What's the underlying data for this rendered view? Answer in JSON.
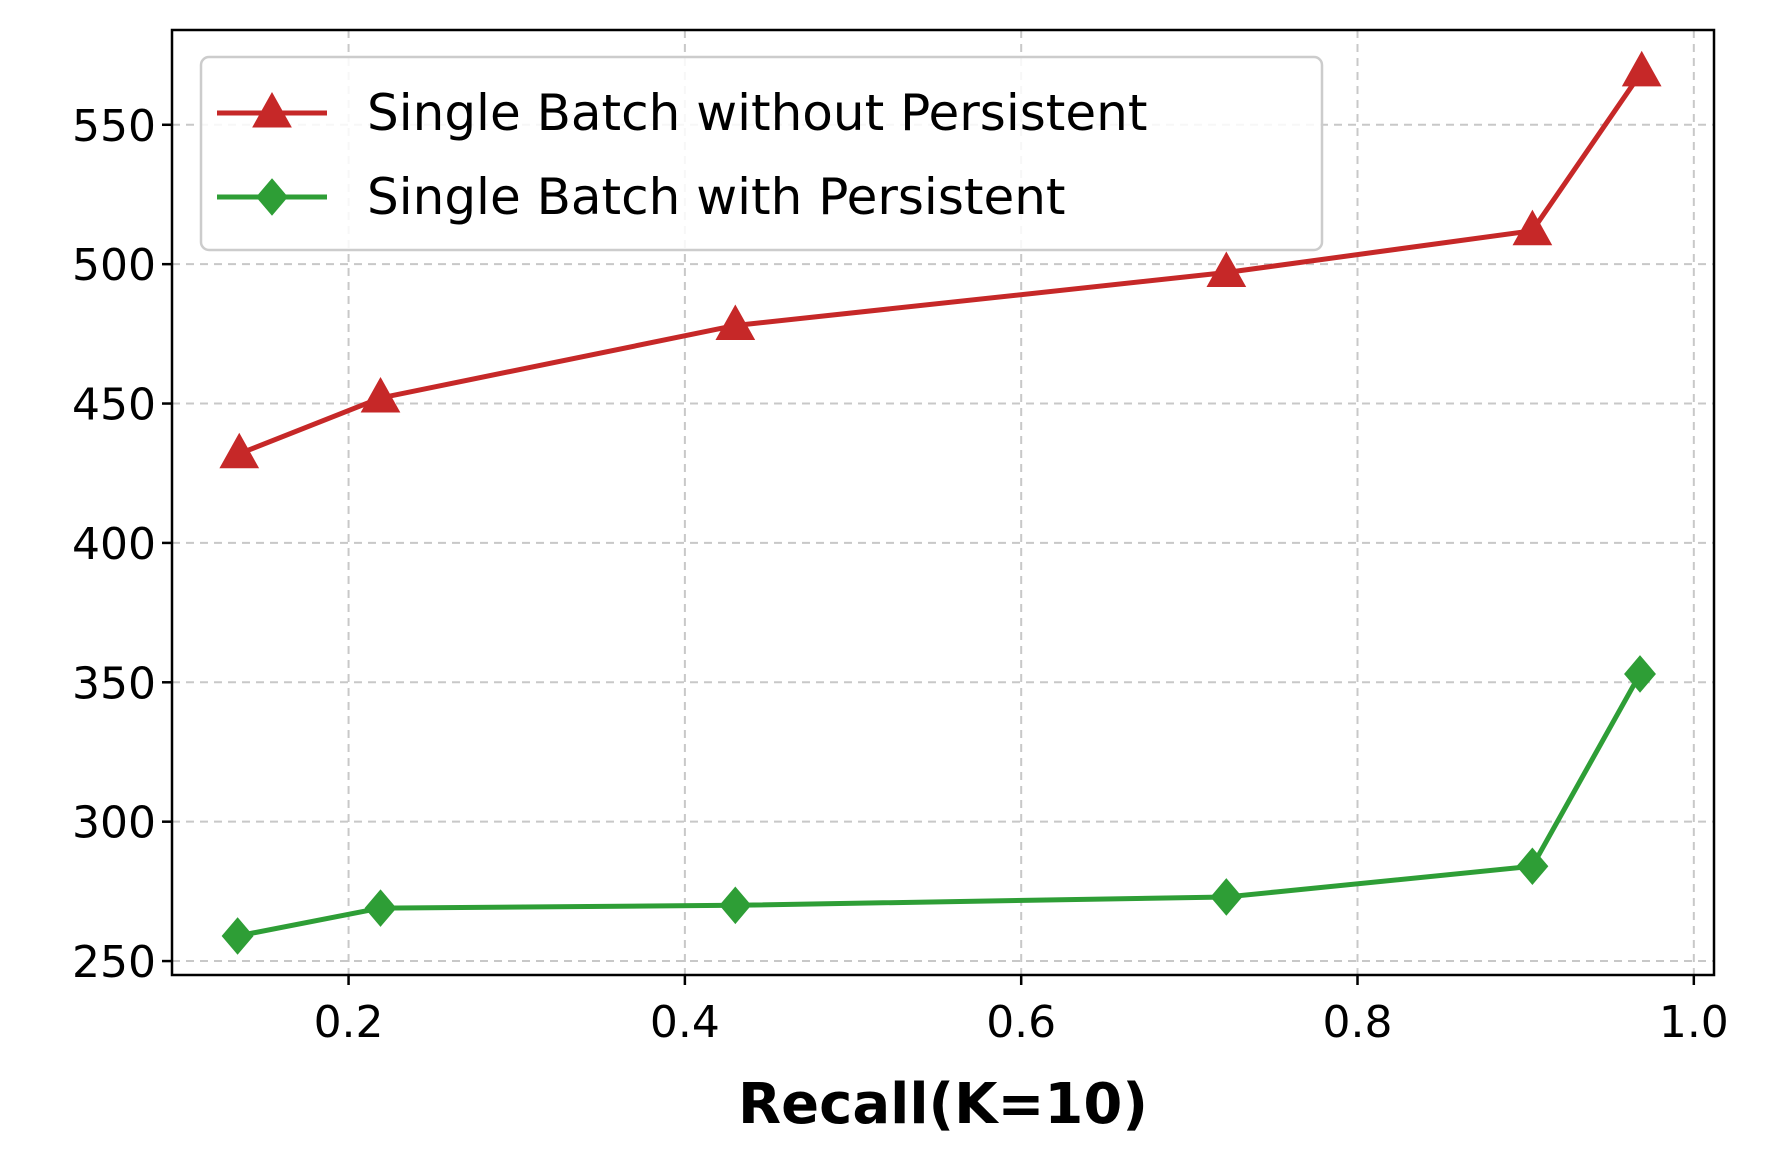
{
  "chart_data": {
    "type": "line",
    "title": "",
    "xlabel": "Recall(K=10)",
    "ylabel": "",
    "xlim": [
      0.095,
      1.012
    ],
    "ylim": [
      245,
      584
    ],
    "xticks": [
      0.2,
      0.4,
      0.6,
      0.8,
      1.0
    ],
    "xtick_labels": [
      "0.2",
      "0.4",
      "0.6",
      "0.8",
      "1.0"
    ],
    "yticks": [
      250,
      300,
      350,
      400,
      450,
      500,
      550
    ],
    "ytick_labels": [
      "250",
      "300",
      "350",
      "400",
      "450",
      "500",
      "550"
    ],
    "grid": true,
    "legend_position": "top-left",
    "series": [
      {
        "name": "Single Batch without Persistent",
        "color": "#c62828",
        "marker": "triangle",
        "x": [
          0.135,
          0.219,
          0.43,
          0.722,
          0.904,
          0.969
        ],
        "y": [
          432,
          452,
          478,
          497,
          512,
          569
        ]
      },
      {
        "name": "Single Batch with Persistent",
        "color": "#2e9e36",
        "marker": "diamond",
        "x": [
          0.134,
          0.219,
          0.43,
          0.722,
          0.904,
          0.968
        ],
        "y": [
          259,
          269,
          270,
          273,
          284,
          353
        ]
      }
    ]
  }
}
